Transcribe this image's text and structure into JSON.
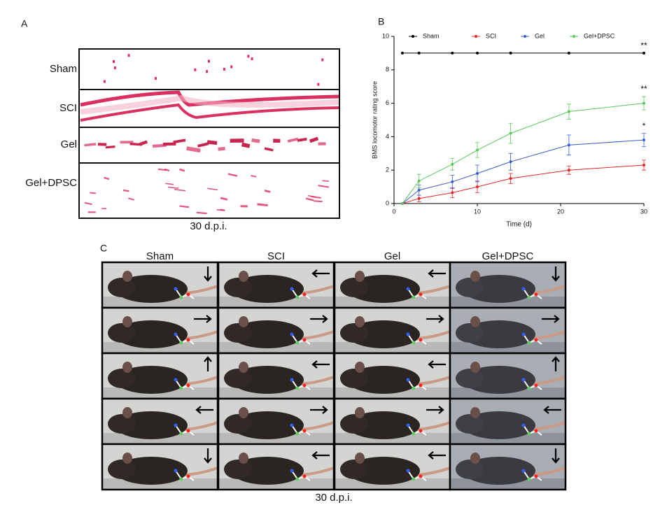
{
  "panel_a": {
    "label": "A",
    "rows": [
      "Sham",
      "SCI",
      "Gel",
      "Gel+DPSC"
    ],
    "caption": "30 d.p.i."
  },
  "panel_b": {
    "label": "B"
  },
  "chart_data": {
    "type": "line",
    "x_label": "Time (d)",
    "y_label": "BMS locomotor rating score",
    "x": [
      1,
      3,
      7,
      10,
      14,
      21,
      30
    ],
    "series": [
      {
        "name": "Sham",
        "color": "#000000",
        "values": [
          9,
          9,
          9,
          9,
          9,
          9,
          9
        ],
        "errors": [
          0,
          0,
          0,
          0,
          0,
          0,
          0
        ],
        "annotation": "**"
      },
      {
        "name": "SCI",
        "color": "#e8262a",
        "values": [
          0,
          0.3,
          0.65,
          1.0,
          1.5,
          2.0,
          2.3
        ],
        "errors": [
          0,
          0.2,
          0.3,
          0.35,
          0.3,
          0.25,
          0.3
        ]
      },
      {
        "name": "Gel",
        "color": "#3a5fcd",
        "values": [
          0,
          0.8,
          1.3,
          1.8,
          2.5,
          3.5,
          3.8
        ],
        "errors": [
          0,
          0.3,
          0.4,
          0.5,
          0.5,
          0.6,
          0.4
        ],
        "annotation": "*"
      },
      {
        "name": "Gel+DPSC",
        "color": "#5cc85c",
        "values": [
          0,
          1.35,
          2.35,
          3.2,
          4.2,
          5.5,
          6.0
        ],
        "errors": [
          0,
          0.4,
          0.35,
          0.45,
          0.6,
          0.45,
          0.4
        ],
        "annotation": "**"
      }
    ],
    "xlim": [
      0,
      30
    ],
    "xticks": [
      0,
      10,
      20,
      30
    ],
    "ylim": [
      0,
      10
    ],
    "yticks": [
      0,
      2,
      4,
      6,
      8,
      10
    ],
    "legend": "top"
  },
  "panel_c": {
    "label": "C",
    "columns": [
      "Sham",
      "SCI",
      "Gel",
      "Gel+DPSC"
    ],
    "caption": "30 d.p.i."
  }
}
